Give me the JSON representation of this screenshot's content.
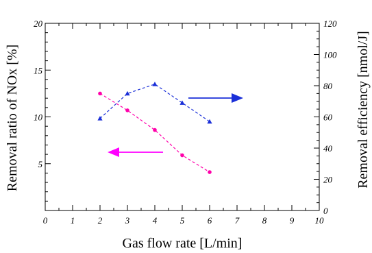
{
  "chart_data": {
    "type": "line",
    "xlabel": "Gas flow rate [L/min]",
    "ylabel_left": "Removal ratio of NOx [%]",
    "ylabel_right": "Removal efficiency [nmol/J]",
    "xlim": [
      0,
      10
    ],
    "ylim_left": [
      0,
      20
    ],
    "ylim_right": [
      0,
      120
    ],
    "x_ticks": [
      "0",
      "1",
      "2",
      "3",
      "4",
      "5",
      "6",
      "7",
      "8",
      "9",
      "10"
    ],
    "y_left_ticks": [
      "5",
      "10",
      "15",
      "20"
    ],
    "y_right_ticks": [
      "0",
      "20",
      "40",
      "60",
      "80",
      "100",
      "120"
    ],
    "grid": false,
    "series": [
      {
        "axis": "left",
        "marker": "circle",
        "color": "#ff00aa",
        "x": [
          2,
          3,
          4,
          5,
          6
        ],
        "values": [
          12.5,
          10.7,
          8.6,
          5.9,
          4.1
        ]
      },
      {
        "axis": "right",
        "marker": "triangle",
        "color": "#1a2fd8",
        "x": [
          2,
          3,
          4,
          5,
          6
        ],
        "values": [
          59,
          75,
          81,
          69,
          57
        ]
      }
    ],
    "annotations": [
      {
        "type": "arrow",
        "direction": "left",
        "color": "#ff00ff",
        "points_to": "left axis"
      },
      {
        "type": "arrow",
        "direction": "right",
        "color": "#1a2fd8",
        "points_to": "right axis"
      }
    ]
  }
}
